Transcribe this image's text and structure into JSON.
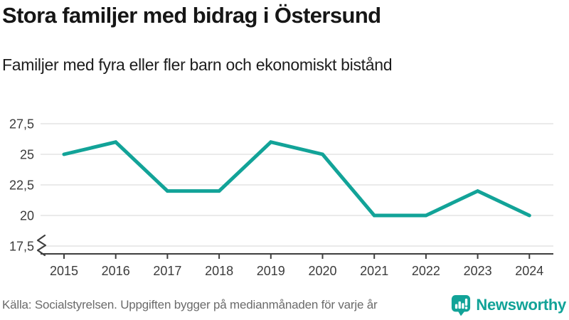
{
  "header": {
    "title": "Stora familjer med bidrag i Östersund",
    "subtitle": "Familjer med fyra eller fler barn och ekonomiskt bistånd"
  },
  "chart_data": {
    "type": "line",
    "title": "Stora familjer med bidrag i Östersund",
    "subtitle": "Familjer med fyra eller fler barn och ekonomiskt bistånd",
    "categories": [
      "2015",
      "2016",
      "2017",
      "2018",
      "2019",
      "2020",
      "2021",
      "2022",
      "2023",
      "2024"
    ],
    "series": [
      {
        "name": "Familjer med fyra eller fler barn och ekonomiskt bistånd",
        "values": [
          25,
          26,
          22,
          22,
          26,
          25,
          20,
          20,
          22,
          20
        ]
      }
    ],
    "xlabel": "",
    "ylabel": "",
    "yticks": [
      27.5,
      25,
      22.5,
      20,
      17.5
    ],
    "ytick_labels": [
      "27,5",
      "25",
      "22,5",
      "20",
      "17,5"
    ],
    "ylim": [
      17.5,
      28.5
    ],
    "grid": true,
    "legend_position": "none",
    "y_axis_break": true,
    "decimal_separator": ","
  },
  "footer": {
    "source": "Källa: Socialstyrelsen. Uppgiften bygger på medianmånaden för varje år",
    "brand": "Newsworthy"
  },
  "colors": {
    "line": "#12a398",
    "brand": "#12a398",
    "axis": "#3f3f3f",
    "grid": "#e3e3e3",
    "tick_text": "#3c3c3c",
    "title_text": "#161616",
    "muted_text": "#6b6b6b"
  },
  "icons": {
    "logo": "newsworthy-speech-bubble-bar-chart-icon"
  }
}
